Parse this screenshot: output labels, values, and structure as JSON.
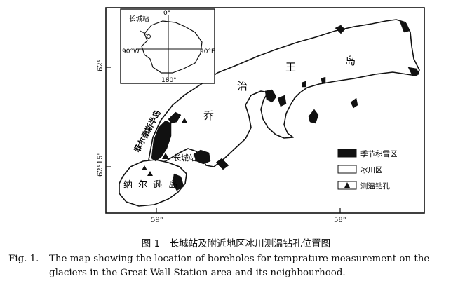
{
  "map": {
    "place_labels": {
      "king_george_island": [
        "乔",
        "治",
        "王",
        "岛"
      ],
      "fildes_peninsula": "菲尔德斯半岛",
      "nelson_island": [
        "纳",
        "尔",
        "逊",
        "岛"
      ],
      "great_wall_station": "长城站"
    },
    "graticule": {
      "lat_62": "62°",
      "lat_62_15": "62°15'",
      "lon_59": "59°",
      "lon_58": "58°"
    },
    "legend": [
      {
        "label": "季节积雪区",
        "symbol": "filled-rect",
        "color": "#111111"
      },
      {
        "label": "冰川区",
        "symbol": "empty-rect",
        "color": "#ffffff"
      },
      {
        "label": "测温钻孔",
        "symbol": "triangle",
        "color": "#111111"
      }
    ],
    "inset": {
      "station_label": "长城站",
      "top": "0°",
      "left": "90°W",
      "right": "90°E",
      "bottom": "180°"
    }
  },
  "caption": {
    "chinese": "图 1　长城站及附近地区冰川测温钻孔位置图",
    "fig_label": "Fig. 1.",
    "english_line1": "The map showing the location of boreholes for temprature measurement on the",
    "english_line2": "glaciers in the Great Wall Station area and its neighbourhood."
  }
}
